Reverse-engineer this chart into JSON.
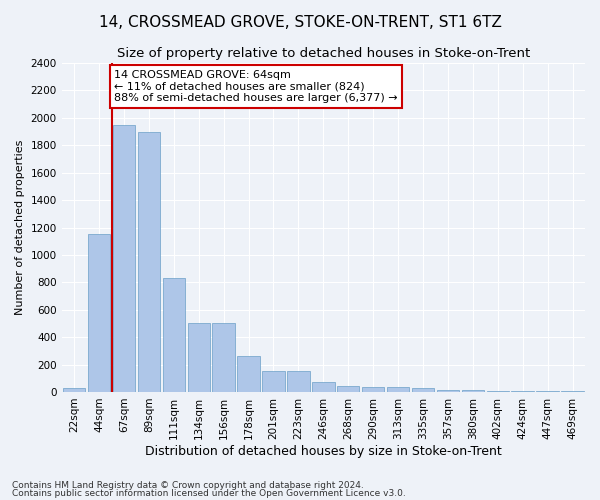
{
  "title": "14, CROSSMEAD GROVE, STOKE-ON-TRENT, ST1 6TZ",
  "subtitle": "Size of property relative to detached houses in Stoke-on-Trent",
  "xlabel": "Distribution of detached houses by size in Stoke-on-Trent",
  "ylabel": "Number of detached properties",
  "categories": [
    "22sqm",
    "44sqm",
    "67sqm",
    "89sqm",
    "111sqm",
    "134sqm",
    "156sqm",
    "178sqm",
    "201sqm",
    "223sqm",
    "246sqm",
    "268sqm",
    "290sqm",
    "313sqm",
    "335sqm",
    "357sqm",
    "380sqm",
    "402sqm",
    "424sqm",
    "447sqm",
    "469sqm"
  ],
  "values": [
    30,
    1150,
    1950,
    1900,
    830,
    500,
    500,
    265,
    155,
    150,
    70,
    40,
    38,
    35,
    28,
    15,
    13,
    8,
    7,
    5,
    4
  ],
  "bar_color": "#aec6e8",
  "bar_edge_color": "#6b9fc8",
  "annotation_box_color": "#ffffff",
  "annotation_border_color": "#cc0000",
  "property_line_color": "#cc0000",
  "property_line_x": 1.5,
  "annotation_title": "14 CROSSMEAD GROVE: 64sqm",
  "annotation_line1": "← 11% of detached houses are smaller (824)",
  "annotation_line2": "88% of semi-detached houses are larger (6,377) →",
  "footnote1": "Contains HM Land Registry data © Crown copyright and database right 2024.",
  "footnote2": "Contains public sector information licensed under the Open Government Licence v3.0.",
  "ylim": [
    0,
    2400
  ],
  "yticks": [
    0,
    200,
    400,
    600,
    800,
    1000,
    1200,
    1400,
    1600,
    1800,
    2000,
    2200,
    2400
  ],
  "title_fontsize": 11,
  "subtitle_fontsize": 9.5,
  "xlabel_fontsize": 9,
  "ylabel_fontsize": 8,
  "tick_fontsize": 7.5,
  "annotation_fontsize": 8,
  "footnote_fontsize": 6.5,
  "background_color": "#eef2f8",
  "plot_bg_color": "#eef2f8",
  "grid_color": "#ffffff"
}
